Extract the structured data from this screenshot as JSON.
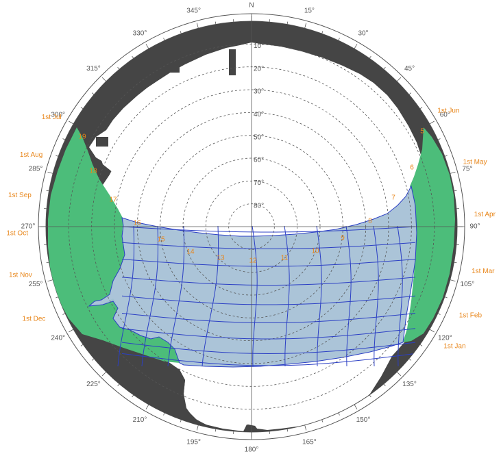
{
  "colors": {
    "obstruction": "#454545",
    "green_zone": "#4cbd7a",
    "sun_band": "#a7c1d6",
    "sun_lines": "#2b3fc4",
    "labels_orange": "#e8861a",
    "grid": "#555555"
  },
  "north_label": "N",
  "azimuth_labels": [
    {
      "deg": 15,
      "text": "15°"
    },
    {
      "deg": 30,
      "text": "30°"
    },
    {
      "deg": 45,
      "text": "45°"
    },
    {
      "deg": 60,
      "text": "60°"
    },
    {
      "deg": 75,
      "text": "75°"
    },
    {
      "deg": 90,
      "text": "90°"
    },
    {
      "deg": 105,
      "text": "105°"
    },
    {
      "deg": 120,
      "text": "120°"
    },
    {
      "deg": 135,
      "text": "135°"
    },
    {
      "deg": 150,
      "text": "150°"
    },
    {
      "deg": 165,
      "text": "165°"
    },
    {
      "deg": 180,
      "text": "180°"
    },
    {
      "deg": 195,
      "text": "195°"
    },
    {
      "deg": 210,
      "text": "210°"
    },
    {
      "deg": 225,
      "text": "225°"
    },
    {
      "deg": 240,
      "text": "240°"
    },
    {
      "deg": 255,
      "text": "255°"
    },
    {
      "deg": 270,
      "text": "270°"
    },
    {
      "deg": 285,
      "text": "285°"
    },
    {
      "deg": 300,
      "text": "300°"
    },
    {
      "deg": 315,
      "text": "315°"
    },
    {
      "deg": 330,
      "text": "330°"
    },
    {
      "deg": 345,
      "text": "345°"
    }
  ],
  "altitude_labels": [
    "10°",
    "20°",
    "30°",
    "40°",
    "50°",
    "60°",
    "70°",
    "80°"
  ],
  "month_labels": [
    {
      "text": "1st Jun",
      "side": "east"
    },
    {
      "text": "1st May",
      "side": "east"
    },
    {
      "text": "1st Apr",
      "side": "east"
    },
    {
      "text": "1st Mar",
      "side": "east"
    },
    {
      "text": "1st Feb",
      "side": "east"
    },
    {
      "text": "1st Jan",
      "side": "east"
    },
    {
      "text": "1st Jul",
      "side": "west"
    },
    {
      "text": "1st Aug",
      "side": "west"
    },
    {
      "text": "1st Sep",
      "side": "west"
    },
    {
      "text": "1st Oct",
      "side": "west"
    },
    {
      "text": "1st Nov",
      "side": "west"
    },
    {
      "text": "1st Dec",
      "side": "west"
    }
  ],
  "hour_labels": [
    "5",
    "6",
    "7",
    "8",
    "9",
    "10",
    "11",
    "12",
    "13",
    "14",
    "15",
    "16",
    "17",
    "18",
    "19"
  ]
}
